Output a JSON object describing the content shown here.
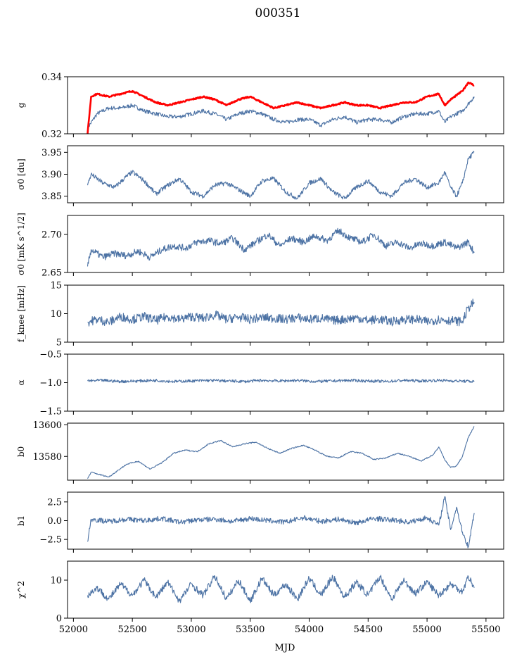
{
  "figure": {
    "title": "000351",
    "xlabel": "MJD"
  },
  "colors": {
    "series": "#4c72a4",
    "highlight": "#ff0000",
    "axis": "#000000"
  },
  "chart_data": [
    {
      "type": "line",
      "ylabel": "g",
      "xlim": [
        51950,
        55650
      ],
      "ylim": [
        0.32,
        0.34
      ],
      "yticks": [
        0.32,
        0.34
      ],
      "ytick_labels": [
        "0.32",
        "0.34"
      ],
      "series": [
        {
          "color": "#4c72a4",
          "x": [
            52120,
            52200,
            52300,
            52400,
            52500,
            52600,
            52700,
            52800,
            52900,
            53000,
            53100,
            53200,
            53300,
            53400,
            53500,
            53600,
            53700,
            53800,
            53900,
            54000,
            54100,
            54200,
            54300,
            54400,
            54500,
            54600,
            54700,
            54800,
            54900,
            55000,
            55100,
            55150,
            55200,
            55300,
            55400
          ],
          "y": [
            0.322,
            0.327,
            0.329,
            0.329,
            0.33,
            0.328,
            0.327,
            0.326,
            0.326,
            0.327,
            0.328,
            0.327,
            0.325,
            0.327,
            0.328,
            0.327,
            0.325,
            0.324,
            0.325,
            0.325,
            0.323,
            0.325,
            0.326,
            0.324,
            0.325,
            0.325,
            0.324,
            0.326,
            0.327,
            0.327,
            0.328,
            0.324,
            0.326,
            0.328,
            0.333
          ]
        },
        {
          "color": "#ff0000",
          "x": [
            52120,
            52150,
            52200,
            52300,
            52400,
            52500,
            52600,
            52700,
            52800,
            52900,
            53000,
            53100,
            53200,
            53300,
            53400,
            53500,
            53600,
            53700,
            53800,
            53900,
            54000,
            54100,
            54200,
            54300,
            54400,
            54500,
            54600,
            54700,
            54800,
            54900,
            55000,
            55100,
            55150,
            55200,
            55300,
            55350,
            55400
          ],
          "y": [
            0.32,
            0.333,
            0.334,
            0.333,
            0.334,
            0.335,
            0.333,
            0.331,
            0.33,
            0.331,
            0.332,
            0.333,
            0.332,
            0.33,
            0.332,
            0.333,
            0.331,
            0.329,
            0.33,
            0.331,
            0.33,
            0.329,
            0.33,
            0.331,
            0.33,
            0.33,
            0.329,
            0.33,
            0.331,
            0.331,
            0.333,
            0.334,
            0.33,
            0.332,
            0.335,
            0.338,
            0.337
          ]
        }
      ]
    },
    {
      "type": "line",
      "ylabel": "σ0 [du]",
      "xlim": [
        51950,
        55650
      ],
      "ylim": [
        3.835,
        3.965
      ],
      "yticks": [
        3.85,
        3.9,
        3.95
      ],
      "ytick_labels": [
        "3.85",
        "3.90",
        "3.95"
      ],
      "series": [
        {
          "color": "#4c72a4",
          "x": [
            52120,
            52150,
            52250,
            52350,
            52450,
            52500,
            52600,
            52700,
            52800,
            52900,
            53000,
            53100,
            53200,
            53300,
            53400,
            53500,
            53600,
            53700,
            53800,
            53900,
            54000,
            54100,
            54200,
            54300,
            54400,
            54500,
            54600,
            54700,
            54800,
            54900,
            55000,
            55100,
            55150,
            55200,
            55250,
            55300,
            55350,
            55400
          ],
          "y": [
            3.875,
            3.9,
            3.88,
            3.87,
            3.895,
            3.905,
            3.885,
            3.855,
            3.875,
            3.89,
            3.86,
            3.85,
            3.875,
            3.88,
            3.865,
            3.85,
            3.885,
            3.89,
            3.86,
            3.845,
            3.88,
            3.89,
            3.86,
            3.845,
            3.87,
            3.885,
            3.86,
            3.85,
            3.88,
            3.89,
            3.87,
            3.88,
            3.905,
            3.87,
            3.85,
            3.88,
            3.935,
            3.95
          ]
        }
      ]
    },
    {
      "type": "line",
      "ylabel": "σ0 [mK s^1/2]",
      "xlim": [
        51950,
        55650
      ],
      "ylim": [
        2.65,
        2.725
      ],
      "yticks": [
        2.65,
        2.7
      ],
      "ytick_labels": [
        "2.65",
        "2.70"
      ],
      "series": [
        {
          "color": "#4c72a4",
          "x": [
            52120,
            52150,
            52250,
            52350,
            52450,
            52550,
            52650,
            52750,
            52850,
            52950,
            53050,
            53150,
            53250,
            53350,
            53450,
            53550,
            53650,
            53750,
            53850,
            53950,
            54050,
            54150,
            54250,
            54350,
            54450,
            54550,
            54650,
            54750,
            54850,
            54950,
            55050,
            55150,
            55250,
            55350,
            55400
          ],
          "y": [
            2.658,
            2.68,
            2.67,
            2.675,
            2.672,
            2.678,
            2.67,
            2.68,
            2.685,
            2.682,
            2.69,
            2.692,
            2.688,
            2.695,
            2.68,
            2.69,
            2.7,
            2.685,
            2.695,
            2.69,
            2.698,
            2.692,
            2.705,
            2.695,
            2.69,
            2.7,
            2.685,
            2.69,
            2.682,
            2.688,
            2.685,
            2.69,
            2.682,
            2.69,
            2.676
          ]
        }
      ]
    },
    {
      "type": "line",
      "ylabel": "f_knee [mHz]",
      "xlim": [
        51950,
        55650
      ],
      "ylim": [
        5,
        15
      ],
      "yticks": [
        5,
        10,
        15
      ],
      "ytick_labels": [
        "5",
        "10",
        "15"
      ],
      "series": [
        {
          "color": "#4c72a4",
          "x": [
            52120,
            52200,
            52300,
            52400,
            52500,
            52600,
            52700,
            52800,
            52900,
            53000,
            53100,
            53200,
            53300,
            53400,
            53500,
            53600,
            53700,
            53800,
            53900,
            54000,
            54100,
            54200,
            54300,
            54400,
            54500,
            54600,
            54700,
            54800,
            54900,
            55000,
            55100,
            55200,
            55300,
            55350,
            55400
          ],
          "y": [
            8.5,
            9.0,
            8.5,
            9.5,
            9.0,
            9.5,
            8.8,
            9.5,
            9.0,
            9.5,
            9.2,
            9.8,
            9.0,
            9.4,
            9.0,
            9.3,
            9.2,
            9.0,
            9.3,
            9.0,
            9.2,
            8.8,
            9.0,
            9.3,
            8.8,
            9.0,
            8.6,
            9.0,
            9.0,
            8.6,
            9.0,
            8.8,
            8.6,
            11.0,
            12.0
          ]
        }
      ]
    },
    {
      "type": "line",
      "ylabel": "α",
      "xlim": [
        51950,
        55650
      ],
      "ylim": [
        -1.5,
        -0.5
      ],
      "yticks": [
        -1.5,
        -1.0,
        -0.5
      ],
      "ytick_labels": [
        "−1.5",
        "−1.0",
        "−0.5"
      ],
      "series": [
        {
          "color": "#4c72a4",
          "x": [
            52120,
            52250,
            52400,
            52550,
            52700,
            52850,
            53000,
            53150,
            53300,
            53450,
            53600,
            53750,
            53900,
            54050,
            54200,
            54350,
            54500,
            54650,
            54800,
            54950,
            55100,
            55250,
            55400
          ],
          "y": [
            -0.97,
            -0.96,
            -0.98,
            -0.97,
            -0.96,
            -0.98,
            -0.97,
            -0.96,
            -0.97,
            -0.98,
            -0.96,
            -0.97,
            -0.96,
            -0.98,
            -0.97,
            -0.96,
            -0.97,
            -0.98,
            -0.96,
            -0.97,
            -0.96,
            -0.97,
            -0.98
          ]
        }
      ]
    },
    {
      "type": "line",
      "ylabel": "b0",
      "xlim": [
        51950,
        55650
      ],
      "ylim": [
        13565,
        13601
      ],
      "yticks": [
        13580,
        13600
      ],
      "ytick_labels": [
        "13580",
        "13600"
      ],
      "series": [
        {
          "color": "#4c72a4",
          "x": [
            52120,
            52150,
            52300,
            52450,
            52550,
            52650,
            52750,
            52850,
            52950,
            53050,
            53150,
            53250,
            53350,
            53450,
            53550,
            53650,
            53750,
            53850,
            53950,
            54050,
            54150,
            54250,
            54350,
            54450,
            54550,
            54650,
            54750,
            54850,
            54950,
            55050,
            55100,
            55150,
            55200,
            55250,
            55300,
            55350,
            55400
          ],
          "y": [
            13566,
            13570,
            13567,
            13575,
            13577,
            13572,
            13576,
            13582,
            13584,
            13583,
            13588,
            13590,
            13586,
            13588,
            13589,
            13585,
            13582,
            13585,
            13587,
            13584,
            13580,
            13579,
            13583,
            13582,
            13578,
            13579,
            13582,
            13580,
            13577,
            13581,
            13586,
            13578,
            13573,
            13574,
            13580,
            13592,
            13599
          ]
        }
      ]
    },
    {
      "type": "line",
      "ylabel": "b1",
      "xlim": [
        51950,
        55650
      ],
      "ylim": [
        -3.8,
        3.8
      ],
      "yticks": [
        -2.5,
        0.0,
        2.5
      ],
      "ytick_labels": [
        "−2.5",
        "0.0",
        "2.5"
      ],
      "series": [
        {
          "color": "#4c72a4",
          "x": [
            52120,
            52150,
            52300,
            52450,
            52600,
            52750,
            52900,
            53050,
            53200,
            53350,
            53500,
            53650,
            53800,
            53950,
            54100,
            54250,
            54400,
            54550,
            54700,
            54850,
            55000,
            55100,
            55150,
            55200,
            55250,
            55300,
            55350,
            55400
          ],
          "y": [
            -2.8,
            0.2,
            -0.1,
            0.2,
            0.0,
            0.3,
            -0.2,
            0.1,
            0.2,
            -0.1,
            0.3,
            0.0,
            -0.2,
            0.4,
            -0.1,
            0.2,
            -0.3,
            0.3,
            0.1,
            -0.2,
            0.4,
            -0.6,
            3.2,
            -1.2,
            1.8,
            -1.5,
            -3.5,
            1.0
          ]
        }
      ]
    },
    {
      "type": "line",
      "ylabel": "χ^2",
      "xlim": [
        51950,
        55650
      ],
      "ylim": [
        0,
        15
      ],
      "yticks": [
        0,
        10
      ],
      "ytick_labels": [
        "0",
        "10"
      ],
      "series": [
        {
          "color": "#4c72a4",
          "x": [
            52120,
            52200,
            52300,
            52400,
            52500,
            52600,
            52700,
            52800,
            52900,
            53000,
            53100,
            53200,
            53300,
            53400,
            53500,
            53600,
            53700,
            53800,
            53900,
            54000,
            54100,
            54200,
            54300,
            54400,
            54500,
            54600,
            54700,
            54800,
            54900,
            55000,
            55100,
            55200,
            55300,
            55350,
            55400
          ],
          "y": [
            6.0,
            8.0,
            5.0,
            9.0,
            6.0,
            10.0,
            5.5,
            9.5,
            4.5,
            9.0,
            6.0,
            11.0,
            5.0,
            10.0,
            4.5,
            10.5,
            6.0,
            9.0,
            5.0,
            10.5,
            6.0,
            11.0,
            5.5,
            9.5,
            6.0,
            11.0,
            5.0,
            10.0,
            6.5,
            9.5,
            6.0,
            9.0,
            7.0,
            11.0,
            8.0
          ]
        }
      ]
    }
  ],
  "xaxis": {
    "ticks": [
      52000,
      52500,
      53000,
      53500,
      54000,
      54500,
      55000,
      55500
    ],
    "tick_labels": [
      "52000",
      "52500",
      "53000",
      "53500",
      "54000",
      "54500",
      "55000",
      "55500"
    ]
  }
}
